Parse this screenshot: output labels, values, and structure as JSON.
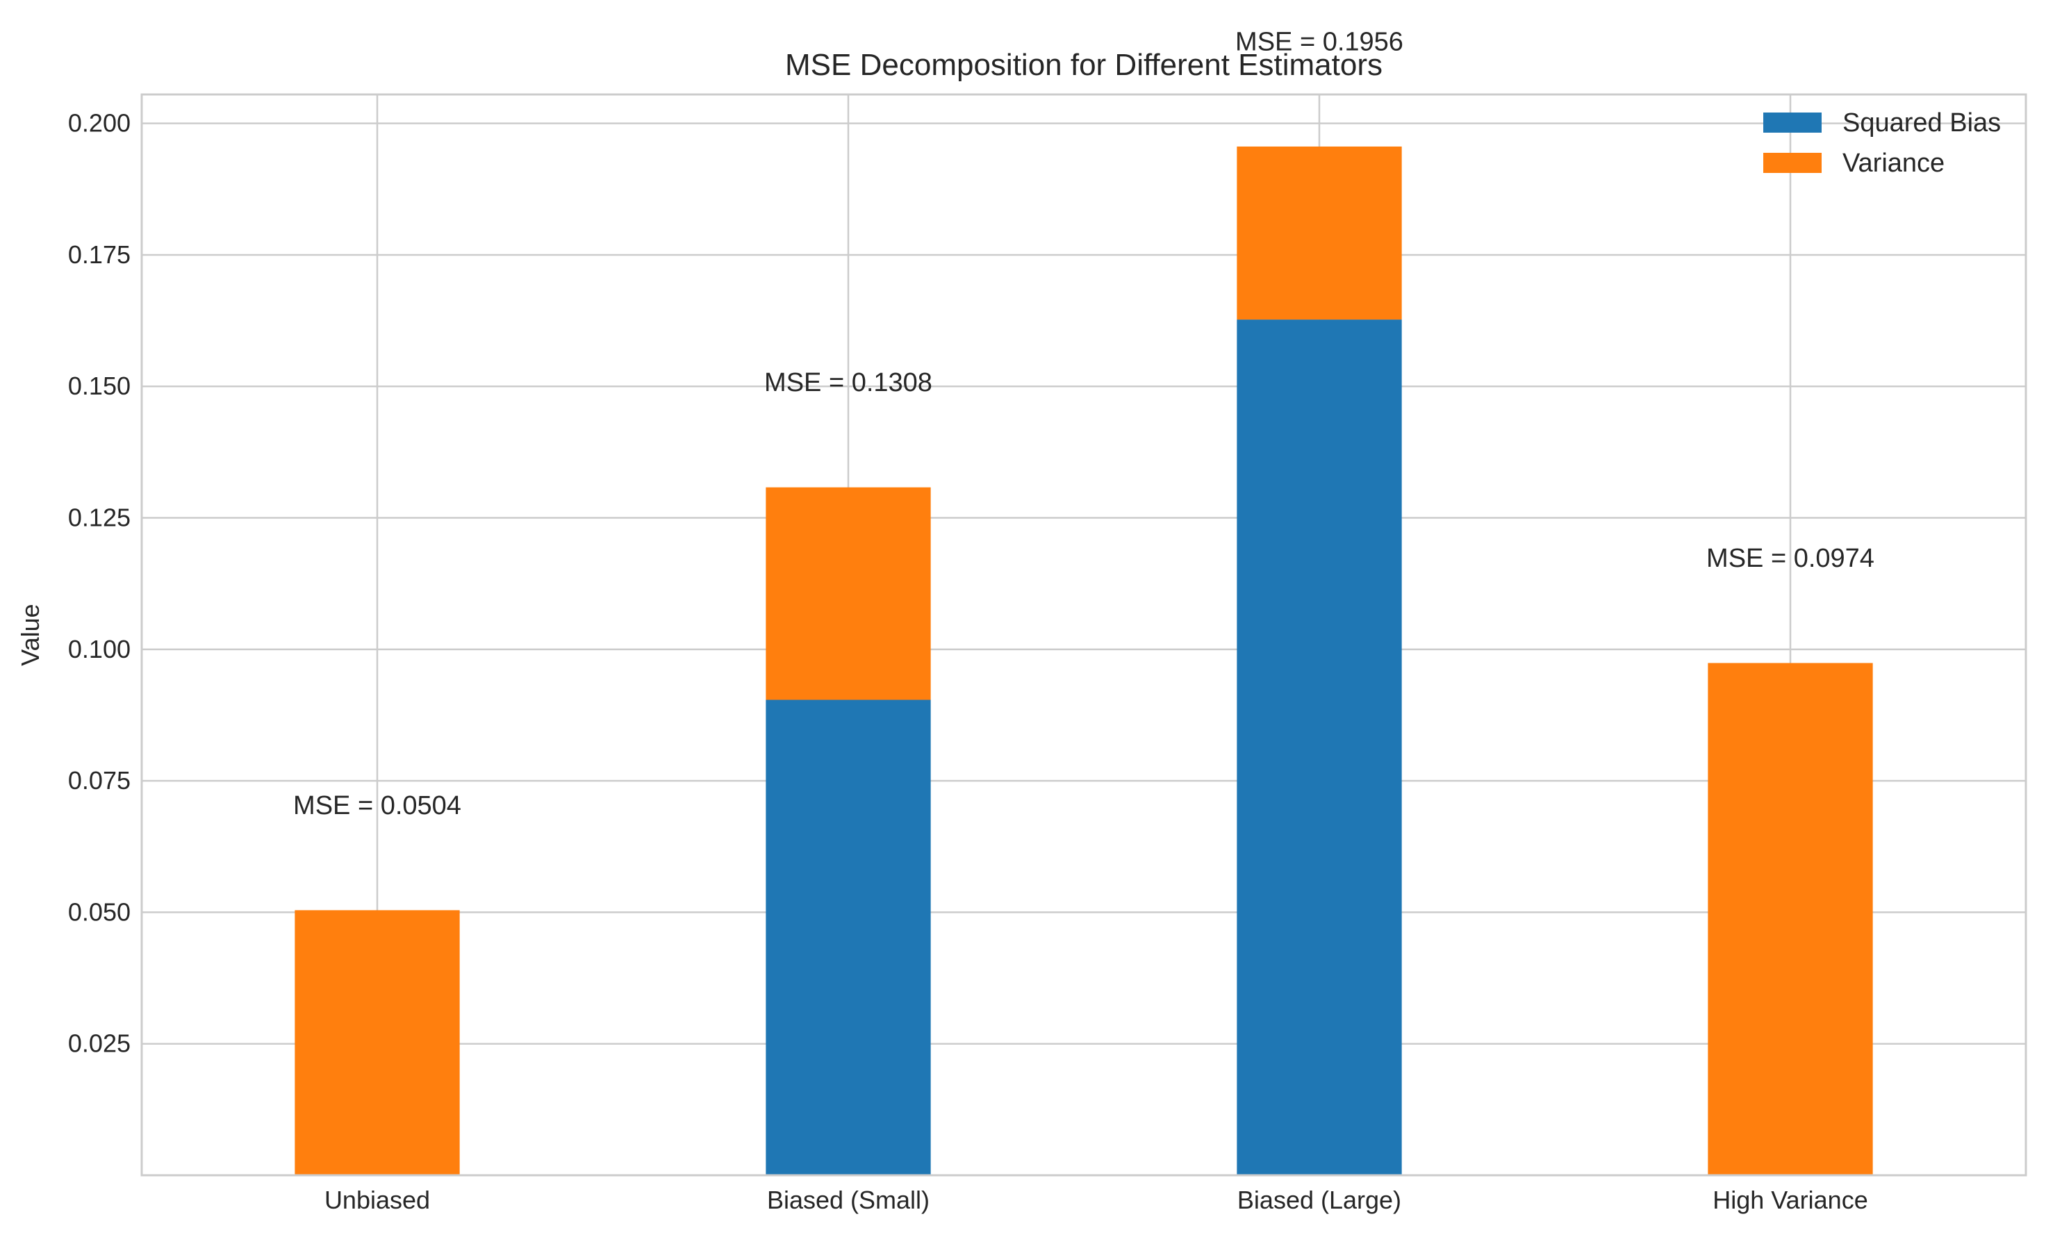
{
  "chart_data": {
    "type": "bar",
    "stacked": true,
    "title": "MSE Decomposition for Different Estimators",
    "xlabel": "",
    "ylabel": "Value",
    "categories": [
      "Unbiased",
      "Biased (Small)",
      "Biased (Large)",
      "High Variance"
    ],
    "series": [
      {
        "name": "Squared Bias",
        "values": [
          0.0,
          0.0904,
          0.1627,
          0.0
        ],
        "color": "#1f77b4"
      },
      {
        "name": "Variance",
        "values": [
          0.0504,
          0.0404,
          0.0329,
          0.0974
        ],
        "color": "#ff7f0e"
      }
    ],
    "annotations": [
      "MSE = 0.0504",
      "MSE = 0.1308",
      "MSE = 0.1956",
      "MSE = 0.0974"
    ],
    "ylim": [
      0.0,
      0.2055
    ],
    "yticks": [
      0.025,
      0.05,
      0.075,
      0.1,
      0.125,
      0.15,
      0.175,
      0.2
    ],
    "ytick_labels": [
      "0.025",
      "0.050",
      "0.075",
      "0.100",
      "0.125",
      "0.150",
      "0.175",
      "0.200"
    ],
    "grid": true,
    "legend_position": "top-right"
  }
}
